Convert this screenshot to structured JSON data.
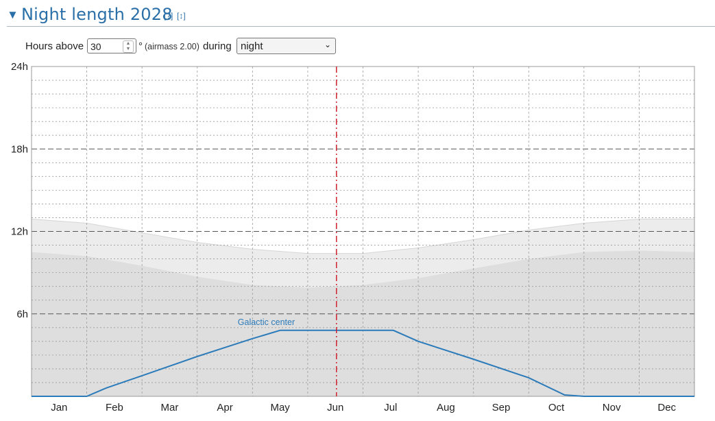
{
  "section": {
    "title": "Night length 2028",
    "help_link": "[?]",
    "expand_link": "[↕]"
  },
  "controls": {
    "hours_above_label": "Hours above",
    "altitude_value": "30",
    "degree_suffix": "°",
    "airmass_note": "(airmass 2.00)",
    "during_label": "during",
    "period_selected": "night"
  },
  "colors": {
    "accent": "#2a6fa8",
    "series_line": "#2b7bba",
    "today_line": "#d0202e",
    "band_light": "#ececec",
    "band_dark": "#dedede"
  },
  "chart_data": {
    "type": "area",
    "title": "",
    "xlabel": "",
    "ylabel": "",
    "x_ticks": [
      "Jan",
      "Feb",
      "Mar",
      "Apr",
      "May",
      "Jun",
      "Jul",
      "Aug",
      "Sep",
      "Oct",
      "Nov",
      "Dec"
    ],
    "y_ticks": [
      "6h",
      "12h",
      "18h",
      "24h"
    ],
    "ylim": [
      0,
      24
    ],
    "xlim": [
      0,
      12
    ],
    "grid": true,
    "x": [
      0,
      1,
      2,
      3,
      4,
      5,
      6,
      7,
      8,
      9,
      10,
      11,
      12
    ],
    "bands": [
      {
        "y": [
          12.9,
          12.6,
          11.9,
          11.2,
          10.7,
          10.4,
          10.4,
          10.8,
          11.4,
          12.1,
          12.6,
          12.9,
          12.9
        ]
      },
      {
        "y": [
          10.5,
          10.2,
          9.5,
          8.7,
          8.1,
          7.9,
          8.1,
          8.6,
          9.3,
          10.0,
          10.5,
          10.6,
          10.5
        ]
      }
    ],
    "series": [
      {
        "name": "Galactic center",
        "x": [
          0,
          1,
          1.35,
          2,
          3,
          4,
          4.5,
          5,
          6,
          6.55,
          7,
          8,
          9,
          9.65,
          10,
          12
        ],
        "y": [
          0,
          0,
          0.6,
          1.5,
          2.9,
          4.2,
          4.8,
          4.8,
          4.8,
          4.8,
          4.0,
          2.7,
          1.35,
          0.1,
          0,
          0
        ]
      }
    ],
    "annotations": [
      {
        "text": "Galactic center",
        "x": 4.25,
        "y": 5.1
      }
    ],
    "current_date_marker": {
      "x": 5.52,
      "style": "dashed-red"
    }
  }
}
